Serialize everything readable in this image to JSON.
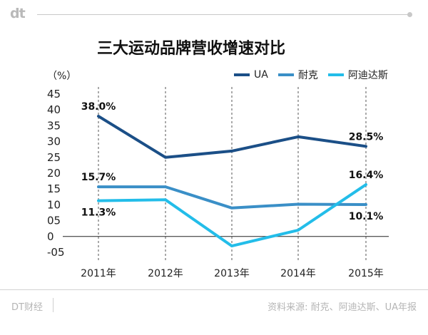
{
  "header": {
    "logo": "dt"
  },
  "chart_data": {
    "type": "line",
    "title": "三大运动品牌营收增速对比",
    "unit_label": "（%）",
    "categories": [
      "2011年",
      "2012年",
      "2013年",
      "2014年",
      "2015年"
    ],
    "y_ticks": [
      "45",
      "40",
      "35",
      "30",
      "25",
      "20",
      "15",
      "10",
      "05",
      "0",
      "-05"
    ],
    "ylim": [
      -5,
      45
    ],
    "series": [
      {
        "name": "UA",
        "color": "#1b4f87",
        "values": [
          38.0,
          25.0,
          27.0,
          31.5,
          28.5
        ]
      },
      {
        "name": "耐克",
        "color": "#3a8fc7",
        "values": [
          15.7,
          15.7,
          9.0,
          10.2,
          10.1
        ]
      },
      {
        "name": "阿迪达斯",
        "color": "#23bde9",
        "values": [
          11.3,
          11.6,
          -3.0,
          2.0,
          16.4
        ]
      }
    ],
    "annotations": [
      {
        "text": "38.0%",
        "series": 0,
        "point": 0,
        "side": "above"
      },
      {
        "text": "15.7%",
        "series": 1,
        "point": 0,
        "side": "above"
      },
      {
        "text": "11.3%",
        "series": 2,
        "point": 0,
        "side": "below"
      },
      {
        "text": "28.5%",
        "series": 0,
        "point": 4,
        "side": "above"
      },
      {
        "text": "16.4%",
        "series": 2,
        "point": 4,
        "side": "above"
      },
      {
        "text": "10.1%",
        "series": 1,
        "point": 4,
        "side": "below"
      }
    ],
    "grid": "vertical-dashed"
  },
  "footer": {
    "brand": "DT财经",
    "source": "资料来源: 耐克、阿迪达斯、UA年报"
  }
}
